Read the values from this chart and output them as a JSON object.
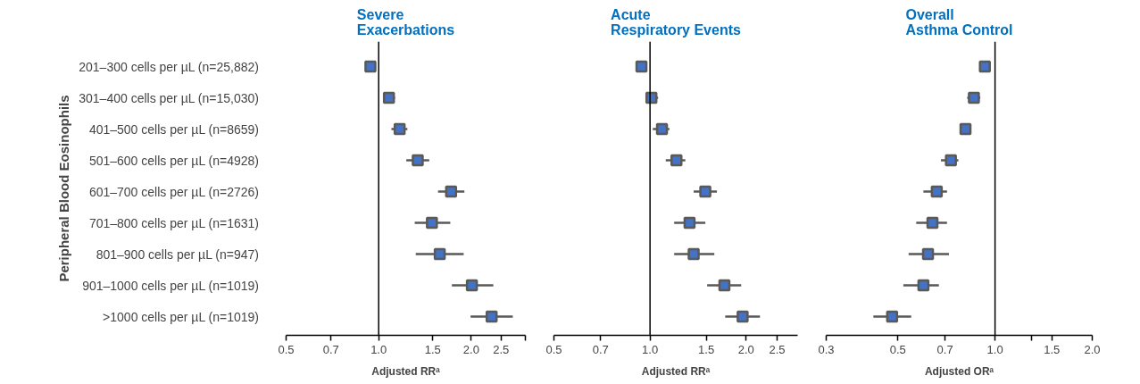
{
  "chart_data": [
    {
      "type": "scatter",
      "title": "Severe Exacerbations",
      "xlabel": "Adjusted RRᵃ",
      "ylabel": "Peripheral Blood Eosinophils",
      "orientation": "horizontal",
      "log": "x",
      "marker": "square",
      "grid": false,
      "color": "#4472c4",
      "categories": [
        "201–300 cells per µL (n=25,882)",
        "301–400 cells per µL (n=15,030)",
        "401–500 cells per µL (n=8659)",
        "501–600 cells per µL (n=4928)",
        "601–700 cells per µL (n=2726)",
        "701–800 cells per µL (n=1631)",
        "801–900 cells per µL (n=947)",
        "901–1000 cells per µL (n=1019)",
        ">1000 cells per µL (n=1019)"
      ],
      "values": [
        0.94,
        1.08,
        1.17,
        1.34,
        1.72,
        1.49,
        1.58,
        2.01,
        2.33
      ],
      "errors": [
        [
          0.91,
          0.98
        ],
        [
          1.04,
          1.13
        ],
        [
          1.1,
          1.24
        ],
        [
          1.23,
          1.46
        ],
        [
          1.56,
          1.9
        ],
        [
          1.31,
          1.71
        ],
        [
          1.32,
          1.89
        ],
        [
          1.73,
          2.36
        ],
        [
          1.99,
          2.73
        ]
      ],
      "xlim": [
        0.5,
        3.0
      ],
      "xticks": [
        {
          "value": 0.5,
          "label": "0.5"
        },
        {
          "value": 0.7,
          "label": "0.7"
        },
        {
          "value": 1,
          "label": "1.0"
        },
        {
          "value": 1.5,
          "label": "1.5"
        },
        {
          "value": 2,
          "label": "2.0"
        },
        {
          "value": 2.5,
          "label": "2.5"
        },
        {
          "value": 3,
          "label": null
        }
      ],
      "ref_lines": [
        {
          "axis": "x",
          "value": 1,
          "color": "#000000"
        }
      ]
    },
    {
      "type": "scatter",
      "title": "Acute Respiratory Events",
      "xlabel": "Adjusted RRᵃ",
      "orientation": "horizontal",
      "log": "x",
      "marker": "square",
      "grid": false,
      "tick_labels": "x",
      "color": "#4472c4",
      "categories": [
        null,
        null,
        null,
        null,
        null,
        null,
        null,
        null,
        null
      ],
      "values": [
        0.94,
        1.01,
        1.09,
        1.21,
        1.49,
        1.33,
        1.37,
        1.71,
        1.95
      ],
      "errors": [
        null,
        [
          0.97,
          1.06
        ],
        [
          1.02,
          1.15
        ],
        [
          1.12,
          1.29
        ],
        [
          1.37,
          1.62
        ],
        [
          1.19,
          1.49
        ],
        [
          1.19,
          1.59
        ],
        [
          1.51,
          1.93
        ],
        [
          1.72,
          2.21
        ]
      ],
      "xlim": [
        0.5,
        2.9
      ],
      "xticks": [
        {
          "value": 0.5,
          "label": "0.5"
        },
        {
          "value": 0.7,
          "label": "0.7"
        },
        {
          "value": 1,
          "label": "1.0"
        },
        {
          "value": 1.5,
          "label": "1.5"
        },
        {
          "value": 2,
          "label": "2.0"
        },
        {
          "value": 2.5,
          "label": "2.5"
        }
      ],
      "ref_lines": [
        {
          "axis": "x",
          "value": 1,
          "color": "#000000"
        }
      ]
    },
    {
      "type": "scatter",
      "title": "Overall Asthma Control",
      "xlabel": "Adjusted ORᵃ",
      "orientation": "horizontal",
      "log": "x",
      "marker": "square",
      "grid": false,
      "tick_labels": "x",
      "color": "#4472c4",
      "categories": [
        null,
        null,
        null,
        null,
        null,
        null,
        null,
        null,
        null
      ],
      "values": [
        0.93,
        0.86,
        0.81,
        0.73,
        0.66,
        0.64,
        0.62,
        0.6,
        0.48
      ],
      "errors": [
        null,
        [
          0.82,
          0.9
        ],
        [
          0.78,
          0.84
        ],
        [
          0.68,
          0.77
        ],
        [
          0.6,
          0.71
        ],
        [
          0.57,
          0.71
        ],
        [
          0.54,
          0.72
        ],
        [
          0.52,
          0.67
        ],
        [
          0.42,
          0.55
        ]
      ],
      "xlim": [
        0.3,
        2.0
      ],
      "xticks": [
        {
          "value": 0.3,
          "label": "0.3"
        },
        {
          "value": 0.5,
          "label": "0.5"
        },
        {
          "value": 0.7,
          "label": "0.7"
        },
        {
          "value": 1,
          "label": "1.0"
        },
        {
          "value": 1.3,
          "label": null
        },
        {
          "value": 1.5,
          "label": "1.5"
        },
        {
          "value": 2,
          "label": "2.0"
        }
      ],
      "ref_lines": [
        {
          "axis": "x",
          "value": 1,
          "color": "#000000"
        }
      ]
    }
  ]
}
